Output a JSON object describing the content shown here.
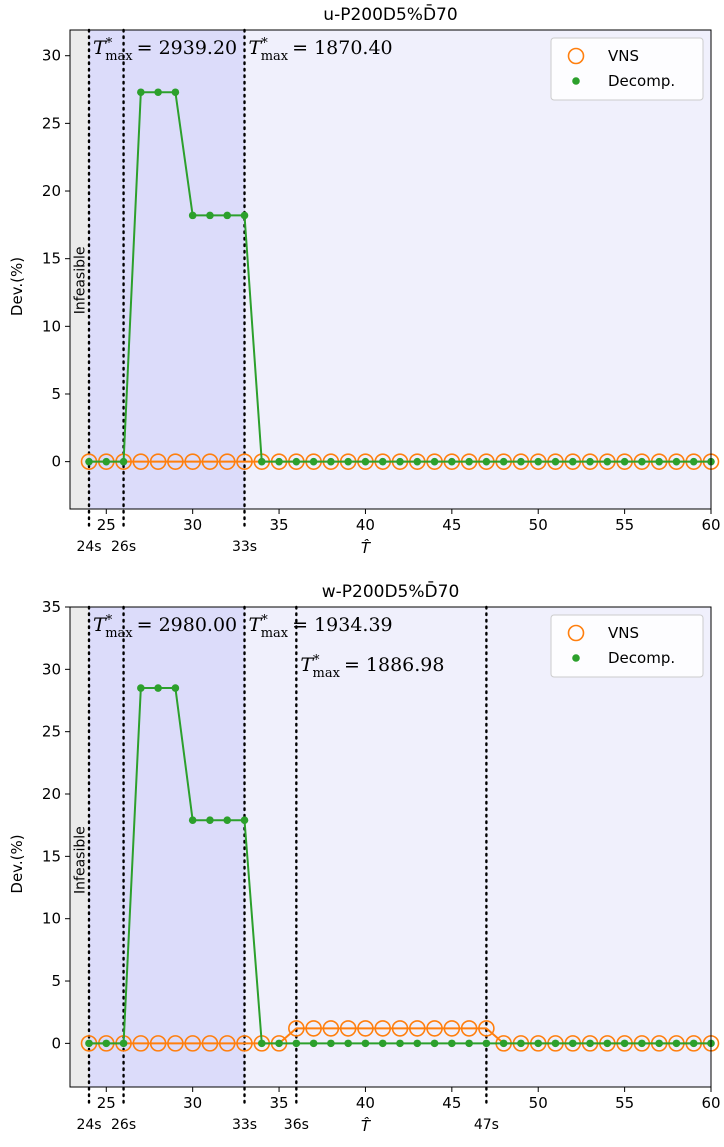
{
  "chart_data": [
    {
      "type": "line",
      "title": "u-P200D5%D̄70",
      "xlabel": "T̂",
      "ylabel": "Dev.(%)",
      "xlim": [
        22.9,
        60
      ],
      "ylim": [
        -3.5,
        31.9
      ],
      "xticks": [
        25,
        30,
        35,
        40,
        45,
        50,
        55,
        60
      ],
      "yticks": [
        0,
        5,
        10,
        15,
        20,
        25,
        30
      ],
      "legend": {
        "position": "top-right",
        "entries": [
          "VNS",
          "Decomp."
        ]
      },
      "colors": {
        "vns": "#ff7f0e",
        "decomp": "#2ca02c",
        "infeasible_bg": "#ebebeb",
        "shaded_bg": "#dcdcfa",
        "light_bg": "#f0f0fc"
      },
      "infeasible_label": "Infeasible",
      "infeasible_region": [
        22.9,
        24
      ],
      "shaded_region": [
        24,
        33
      ],
      "light_region": [
        33,
        60
      ],
      "vlines": [
        {
          "x": 24,
          "label": "24s"
        },
        {
          "x": 26,
          "label": "26s"
        },
        {
          "x": 33,
          "label": "33s"
        }
      ],
      "annotations": [
        {
          "x_anchor": 24,
          "value": "= 2939.20",
          "row": 0
        },
        {
          "x_anchor": 33,
          "value": "= 1870.40",
          "row": 0
        }
      ],
      "series": [
        {
          "name": "VNS",
          "x": [
            24,
            25,
            26,
            27,
            28,
            29,
            30,
            31,
            32,
            33,
            34,
            35,
            36,
            37,
            38,
            39,
            40,
            41,
            42,
            43,
            44,
            45,
            46,
            47,
            48,
            49,
            50,
            51,
            52,
            53,
            54,
            55,
            56,
            57,
            58,
            59,
            60
          ],
          "y": [
            0,
            0,
            0,
            0,
            0,
            0,
            0,
            0,
            0,
            0,
            0,
            0,
            0,
            0,
            0,
            0,
            0,
            0,
            0,
            0,
            0,
            0,
            0,
            0,
            0,
            0,
            0,
            0,
            0,
            0,
            0,
            0,
            0,
            0,
            0,
            0,
            0
          ]
        },
        {
          "name": "Decomp.",
          "x": [
            24,
            25,
            26,
            27,
            28,
            29,
            30,
            31,
            32,
            33,
            34,
            35,
            36,
            37,
            38,
            39,
            40,
            41,
            42,
            43,
            44,
            45,
            46,
            47,
            48,
            49,
            50,
            51,
            52,
            53,
            54,
            55,
            56,
            57,
            58,
            59,
            60
          ],
          "y": [
            0,
            0,
            0,
            27.3,
            27.3,
            27.3,
            18.2,
            18.2,
            18.2,
            18.2,
            0,
            0,
            0,
            0,
            0,
            0,
            0,
            0,
            0,
            0,
            0,
            0,
            0,
            0,
            0,
            0,
            0,
            0,
            0,
            0,
            0,
            0,
            0,
            0,
            0,
            0,
            0
          ]
        }
      ]
    },
    {
      "type": "line",
      "title": "w-P200D5%D̄70",
      "xlabel": "T̂",
      "ylabel": "Dev.(%)",
      "xlim": [
        22.9,
        60
      ],
      "ylim": [
        -3.5,
        35
      ],
      "xticks": [
        25,
        30,
        35,
        40,
        45,
        50,
        55,
        60
      ],
      "yticks": [
        0,
        5,
        10,
        15,
        20,
        25,
        30,
        35
      ],
      "legend": {
        "position": "top-right",
        "entries": [
          "VNS",
          "Decomp."
        ]
      },
      "colors": {
        "vns": "#ff7f0e",
        "decomp": "#2ca02c",
        "infeasible_bg": "#ebebeb",
        "shaded_bg": "#dcdcfa",
        "light_bg": "#f0f0fc"
      },
      "infeasible_label": "Infeasible",
      "infeasible_region": [
        22.9,
        24
      ],
      "shaded_region": [
        24,
        33
      ],
      "light_region": [
        33,
        60
      ],
      "vlines": [
        {
          "x": 24,
          "label": "24s"
        },
        {
          "x": 26,
          "label": "26s"
        },
        {
          "x": 33,
          "label": "33s"
        },
        {
          "x": 36,
          "label": "36s"
        },
        {
          "x": 47,
          "label": "47s"
        }
      ],
      "annotations": [
        {
          "x_anchor": 24,
          "value": "= 2980.00",
          "row": 0
        },
        {
          "x_anchor": 33,
          "value": "= 1934.39",
          "row": 0
        },
        {
          "x_anchor": 36,
          "value": "= 1886.98",
          "row": 1
        }
      ],
      "series": [
        {
          "name": "VNS",
          "x": [
            24,
            25,
            26,
            27,
            28,
            29,
            30,
            31,
            32,
            33,
            34,
            35,
            36,
            37,
            38,
            39,
            40,
            41,
            42,
            43,
            44,
            45,
            46,
            47,
            48,
            49,
            50,
            51,
            52,
            53,
            54,
            55,
            56,
            57,
            58,
            59,
            60
          ],
          "y": [
            0,
            0,
            0,
            0,
            0,
            0,
            0,
            0,
            0,
            0,
            0,
            0,
            1.2,
            1.2,
            1.2,
            1.2,
            1.2,
            1.2,
            1.2,
            1.2,
            1.2,
            1.2,
            1.2,
            1.2,
            0,
            0,
            0,
            0,
            0,
            0,
            0,
            0,
            0,
            0,
            0,
            0,
            0
          ]
        },
        {
          "name": "Decomp.",
          "x": [
            24,
            25,
            26,
            27,
            28,
            29,
            30,
            31,
            32,
            33,
            34,
            35,
            36,
            37,
            38,
            39,
            40,
            41,
            42,
            43,
            44,
            45,
            46,
            47,
            48,
            49,
            50,
            51,
            52,
            53,
            54,
            55,
            56,
            57,
            58,
            59,
            60
          ],
          "y": [
            0,
            0,
            0,
            28.5,
            28.5,
            28.5,
            17.9,
            17.9,
            17.9,
            17.9,
            0,
            0,
            0,
            0,
            0,
            0,
            0,
            0,
            0,
            0,
            0,
            0,
            0,
            0,
            0,
            0,
            0,
            0,
            0,
            0,
            0,
            0,
            0,
            0,
            0,
            0,
            0
          ]
        }
      ]
    }
  ]
}
